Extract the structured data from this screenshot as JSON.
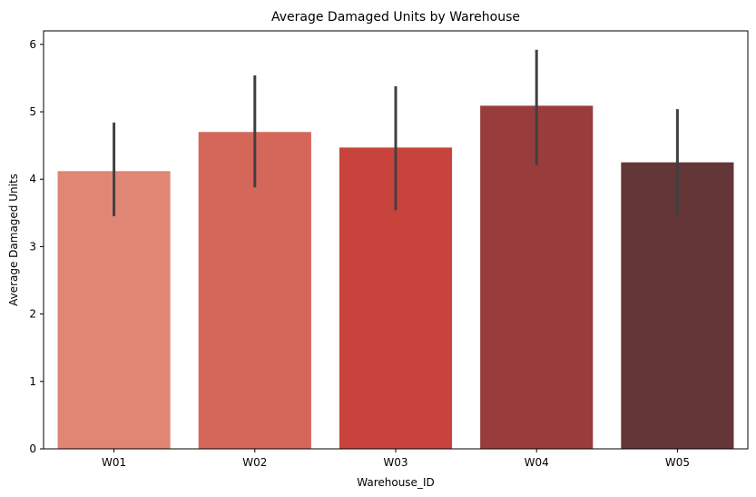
{
  "chart_data": {
    "type": "bar",
    "title": "Average Damaged Units by Warehouse",
    "xlabel": "Warehouse_ID",
    "ylabel": "Average Damaged Units",
    "categories": [
      "W01",
      "W02",
      "W03",
      "W04",
      "W05"
    ],
    "values": [
      4.12,
      4.7,
      4.47,
      5.09,
      4.25
    ],
    "error_low": [
      3.45,
      3.88,
      3.54,
      4.21,
      3.47
    ],
    "error_high": [
      4.84,
      5.54,
      5.38,
      5.92,
      5.04
    ],
    "colors": [
      "#e08674",
      "#d5665a",
      "#c9433d",
      "#983d3b",
      "#643637"
    ],
    "error_color": "#404040",
    "ylim": [
      0,
      6.2
    ],
    "yticks": [
      0,
      1,
      2,
      3,
      4,
      5,
      6
    ],
    "grid": false,
    "legend": "none"
  }
}
